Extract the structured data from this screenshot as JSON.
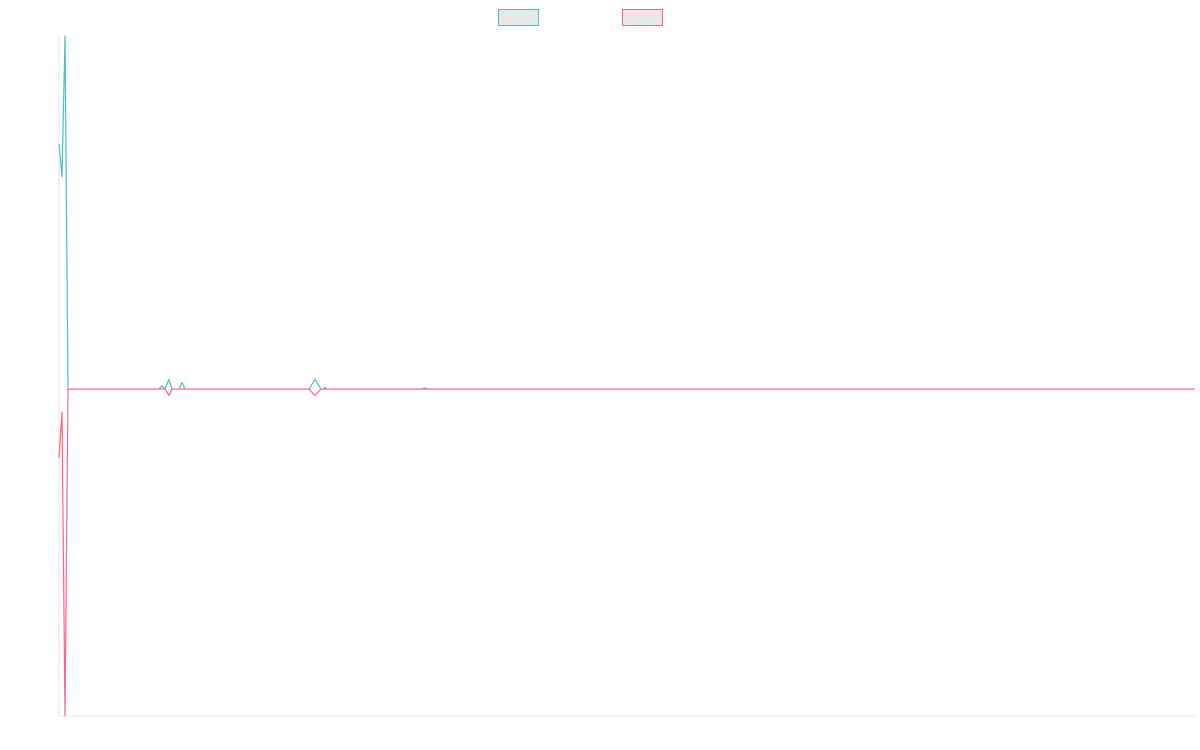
{
  "chart_data": {
    "type": "line",
    "x": [
      0,
      3,
      6,
      9,
      100,
      103,
      106,
      110,
      113,
      120,
      123,
      126,
      250,
      256,
      262,
      264,
      266,
      268,
      362,
      366,
      370,
      1136
    ],
    "xlim": [
      0,
      1136
    ],
    "ylim": [
      -1,
      1.08
    ],
    "grid": false,
    "legend": "top",
    "series": [
      {
        "color": "#4bc0c0",
        "values": [
          0.75,
          0.65,
          1.08,
          0,
          0,
          0.01,
          0,
          0.03,
          0,
          0,
          0.02,
          0,
          0,
          0.03,
          0,
          0,
          0.005,
          0,
          0,
          0.003,
          0,
          0
        ]
      },
      {
        "color": "#ff6384",
        "values": [
          -0.21,
          -0.07,
          -1,
          0,
          0,
          0,
          0,
          -0.02,
          0,
          0,
          0,
          0,
          0,
          -0.02,
          0,
          0,
          0,
          0,
          0,
          0,
          0,
          0
        ]
      }
    ]
  }
}
